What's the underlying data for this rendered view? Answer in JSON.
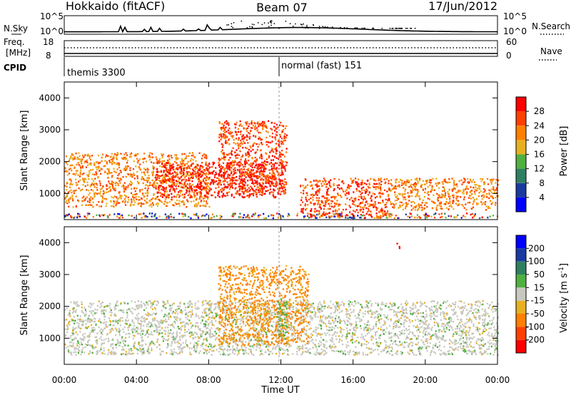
{
  "header": {
    "station": "Hokkaido (fitACF)",
    "beam": "Beam 07",
    "date": "17/Jun/2012"
  },
  "status_panel": {
    "nsky_label": "N.Sky",
    "nsky_ticks": [
      "10^5",
      "10^0"
    ],
    "nsearch_label": "N.Search",
    "nsearch_ticks": [
      "10^5",
      "10^0"
    ],
    "freq_label": "Freq.",
    "freq_unit": "[MHz]",
    "freq_ticks": [
      "18",
      "8"
    ],
    "nave_label": "Nave",
    "nave_ticks": [
      "60",
      "0"
    ],
    "cpid_label": "CPID",
    "cpid_entries": [
      {
        "text": "themis 3300",
        "start_hour": 0
      },
      {
        "text": "normal (fast) 151",
        "start_hour": 12.0
      }
    ]
  },
  "chart_data": [
    {
      "type": "heatmap",
      "title": "",
      "xlabel": "",
      "ylabel": "Slant Range [km]",
      "xlim_hours": [
        0,
        24
      ],
      "ylim_km": [
        180,
        4500
      ],
      "x_ticks": [
        "00:00",
        "04:00",
        "08:00",
        "12:00",
        "16:00",
        "20:00",
        "00:00"
      ],
      "y_ticks": [
        1000,
        2000,
        3000,
        4000
      ],
      "colorbar": {
        "label": "Power [dB]",
        "ticks": [
          4,
          8,
          12,
          16,
          20,
          24,
          28
        ],
        "colors": [
          "#0000ff",
          "#1a3aa0",
          "#2e8060",
          "#50b040",
          "#e8b020",
          "#ff8000",
          "#ff4000",
          "#ff0000"
        ]
      },
      "features": [
        {
          "desc_hours": [
            0,
            24
          ],
          "range_km": [
            250,
            400
          ],
          "level": "mixed"
        },
        {
          "desc_hours": [
            0,
            8
          ],
          "range_km": [
            600,
            2300
          ],
          "level": 20
        },
        {
          "desc_hours": [
            5,
            12.3
          ],
          "range_km": [
            900,
            2000
          ],
          "level": 26
        },
        {
          "desc_hours": [
            8.5,
            12.3
          ],
          "range_km": [
            1000,
            3300
          ],
          "level": 24
        },
        {
          "desc_hours": [
            13,
            18
          ],
          "range_km": [
            300,
            1500
          ],
          "level": 24
        },
        {
          "desc_hours": [
            18,
            24
          ],
          "range_km": [
            500,
            1500
          ],
          "level": 18
        }
      ]
    },
    {
      "type": "heatmap",
      "title": "",
      "xlabel": "Time UT",
      "ylabel": "Slant Range [km]",
      "xlim_hours": [
        0,
        24
      ],
      "ylim_km": [
        180,
        4500
      ],
      "x_ticks": [
        "00:00",
        "04:00",
        "08:00",
        "12:00",
        "16:00",
        "20:00",
        "00:00"
      ],
      "y_ticks": [
        1000,
        2000,
        3000,
        4000
      ],
      "colorbar": {
        "label": "Velocity [m s^-1]",
        "ticks": [
          200,
          100,
          50,
          15,
          -15,
          -50,
          -100,
          -200
        ],
        "colors": [
          "#0000ff",
          "#1a3aa0",
          "#2e8060",
          "#50b040",
          "#c8c8c0",
          "#e8b020",
          "#ff8000",
          "#ff4000",
          "#ff0000"
        ]
      },
      "features": [
        {
          "desc_hours": [
            0,
            24
          ],
          "range_km": [
            500,
            2200
          ],
          "velocity": 0
        },
        {
          "desc_hours": [
            8.5,
            13.5
          ],
          "range_km": [
            800,
            3300
          ],
          "velocity": -60
        },
        {
          "desc_hours": [
            11.8,
            12.3
          ],
          "range_km": [
            1000,
            2300
          ],
          "velocity": 30
        },
        {
          "desc_hours": [
            18.4,
            18.6
          ],
          "range_km": [
            3800,
            4000
          ],
          "velocity": -200
        }
      ]
    }
  ]
}
